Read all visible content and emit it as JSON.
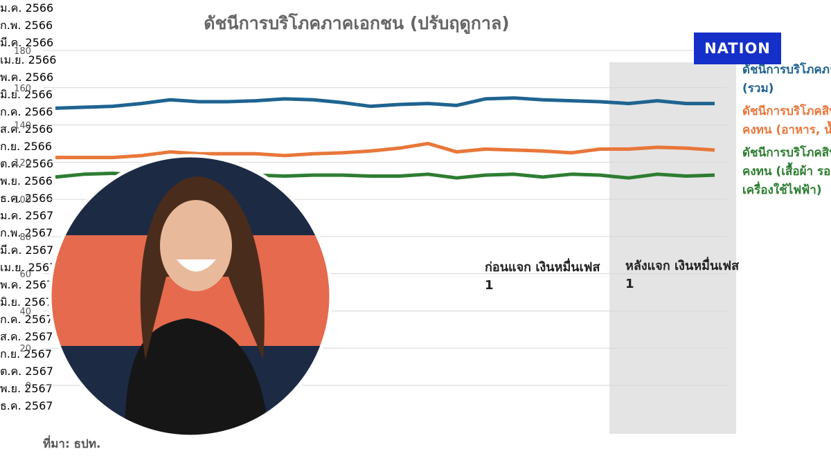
{
  "chart_data": {
    "type": "line",
    "title": "ดัชนีการบริโภคภาคเอกชน (ปรับฤดูกาล)",
    "categories": [
      "ม.ค. 2566",
      "ก.พ. 2566",
      "มี.ค. 2566",
      "เม.ย. 2566",
      "พ.ค. 2566",
      "มิ.ย. 2566",
      "ก.ค. 2566",
      "ส.ค. 2566",
      "ก.ย. 2566",
      "ต.ค. 2566",
      "พ.ย. 2566",
      "ธ.ค. 2566",
      "ม.ค. 2567",
      "ก.พ. 2567",
      "มี.ค. 2567",
      "เม.ย. 2567",
      "พ.ค. 2567",
      "มิ.ย. 2567",
      "ก.ค. 2567",
      "ส.ค. 2567",
      "ก.ย. 2567",
      "ต.ค. 2567",
      "พ.ย. 2567",
      "ธ.ค. 2567"
    ],
    "series": [
      {
        "name": "ดัชนีการบริโภคภาคเอกชน (รวม)",
        "color": "#1f6391",
        "values": [
          149,
          149.5,
          150,
          151.5,
          153.5,
          152.5,
          152.5,
          153,
          154,
          153.5,
          152,
          150,
          151,
          151.5,
          150.5,
          154,
          154.5,
          153.5,
          153,
          152.5,
          151.5,
          153,
          151.5,
          151.5
        ]
      },
      {
        "name": "ดัชนีการบริโภคสินค้าไม่คงทน (อาหาร, น้ำมัน)",
        "color": "#e8773a",
        "values": [
          122.5,
          122.5,
          122.5,
          123.5,
          125.5,
          124.5,
          124.5,
          124.5,
          123.5,
          124.5,
          125,
          126,
          127.5,
          130,
          125.5,
          127,
          126.5,
          126,
          125,
          127,
          127,
          128,
          127.5,
          126.5
        ]
      },
      {
        "name": "ดัชนีการบริโภคสินค้ากึ่งคงทน (เสื้อผ้า รองเท้า เครื่องใช้ไฟฟ้า)",
        "color": "#2e7d32",
        "values": [
          112,
          113.5,
          114,
          113,
          113,
          113,
          113.5,
          113,
          112.5,
          113,
          113,
          112.5,
          112.5,
          113.5,
          111.5,
          113,
          113.5,
          112,
          113.5,
          113,
          111.5,
          113.5,
          112.5,
          113
        ]
      }
    ],
    "ylim": [
      0,
      180
    ],
    "yticks": [
      0,
      20,
      40,
      60,
      80,
      100,
      120,
      140,
      160,
      180
    ],
    "grid": true,
    "annotations": [
      "ก่อนแจก เงินหมื่นเฟส 1",
      "หลังแจก เงินหมื่นเฟส 1"
    ],
    "source": "ที่มา: ธปท.",
    "logo": "NATION"
  }
}
